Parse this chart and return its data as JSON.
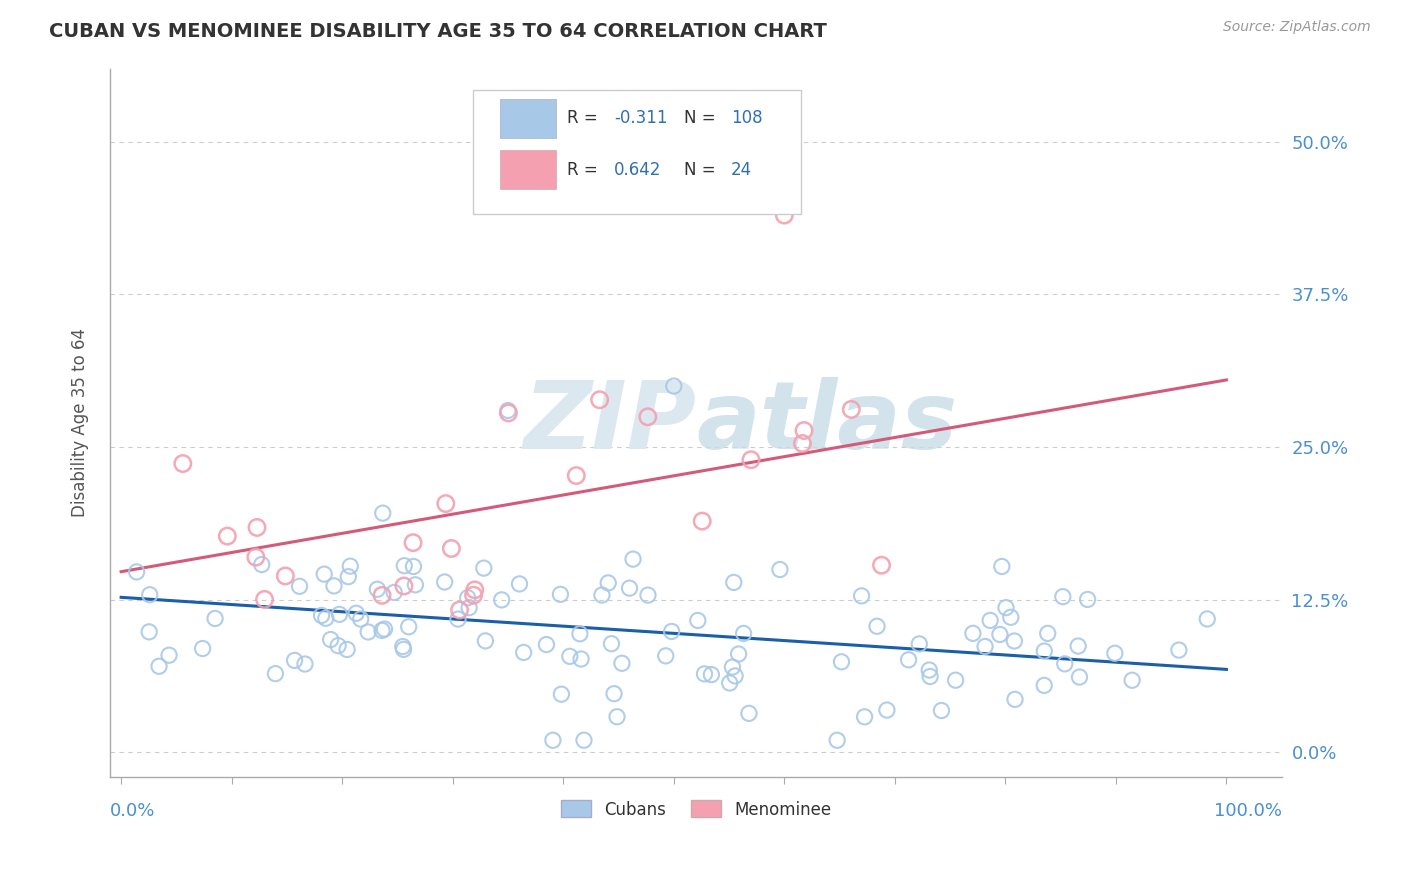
{
  "title": "CUBAN VS MENOMINEE DISABILITY AGE 35 TO 64 CORRELATION CHART",
  "source": "Source: ZipAtlas.com",
  "ylabel": "Disability Age 35 to 64",
  "xlim": [
    -0.01,
    1.05
  ],
  "ylim": [
    -0.02,
    0.56
  ],
  "yticks": [
    0.0,
    0.125,
    0.25,
    0.375,
    0.5
  ],
  "ytick_labels": [
    "0.0%",
    "12.5%",
    "25.0%",
    "37.5%",
    "50.0%"
  ],
  "xtick_labels": [
    "0.0%",
    "100.0%"
  ],
  "cuban_R": -0.311,
  "cuban_N": 108,
  "menominee_R": 0.642,
  "menominee_N": 24,
  "cuban_dot_color": "#a8c8e8",
  "menominee_dot_color": "#f4a0b0",
  "blue_line_color": "#1a5fa8",
  "pink_line_color": "#d45a7a",
  "background_color": "#ffffff",
  "grid_color": "#cccccc",
  "title_color": "#333333",
  "watermark_color": "#dce8f0",
  "tick_label_color": "#4a90d0",
  "legend_R_N_color": "#3070b0",
  "legend_text_color": "#333333",
  "cuban_trendline": [
    0.0,
    1.0,
    0.127,
    0.068
  ],
  "menominee_trendline": [
    0.0,
    1.0,
    0.148,
    0.305
  ]
}
